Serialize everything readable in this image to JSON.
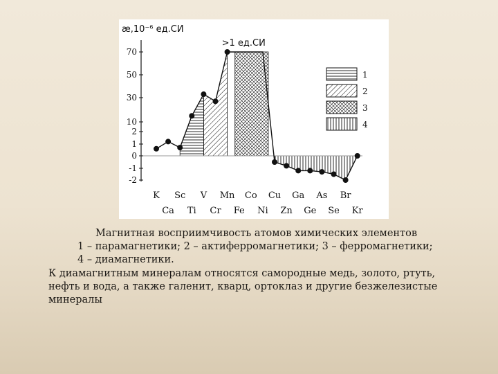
{
  "chart_data": {
    "type": "line",
    "ylabel": "æ,10⁻⁶ ед.СИ",
    "peak_annotation": ">1 ед.СИ",
    "y_ticks": [
      "-2",
      "-1",
      "0",
      "1",
      "2",
      "10",
      "30",
      "50",
      "70"
    ],
    "elements_top": [
      "K",
      "Sc",
      "V",
      "Mn",
      "Co",
      "Cu",
      "Ga",
      "As",
      "Br"
    ],
    "elements_bottom": [
      "Ca",
      "Ti",
      "Cr",
      "Fe",
      "Ni",
      "Zn",
      "Ge",
      "Se",
      "Kr"
    ],
    "elements_order": [
      "K",
      "Ca",
      "Sc",
      "Ti",
      "V",
      "Cr",
      "Mn",
      "Fe",
      "Co",
      "Ni",
      "Cu",
      "Zn",
      "Ga",
      "Ge",
      "As",
      "Se",
      "Br",
      "Kr"
    ],
    "values": [
      0.6,
      1.2,
      0.7,
      15,
      33,
      27,
      70,
      70,
      70,
      70,
      -0.5,
      -0.8,
      -1.2,
      -1.2,
      -1.3,
      -1.5,
      -2.0,
      0.0
    ],
    "legend": [
      "1",
      "2",
      "3",
      "4"
    ]
  },
  "caption": {
    "line1": "Магнитная восприимчивость атомов химических элементов",
    "line2": "1 – парамагнетики; 2 – актиферромагнетики; 3 – ферромагнетики;",
    "line3": "4 – диамагнетики.",
    "note": "К диамагнитным минералам относятся самородные медь, золото, ртуть, нефть и вода, а также галенит, кварц, ортоклаз и другие безжелезистые минералы"
  }
}
